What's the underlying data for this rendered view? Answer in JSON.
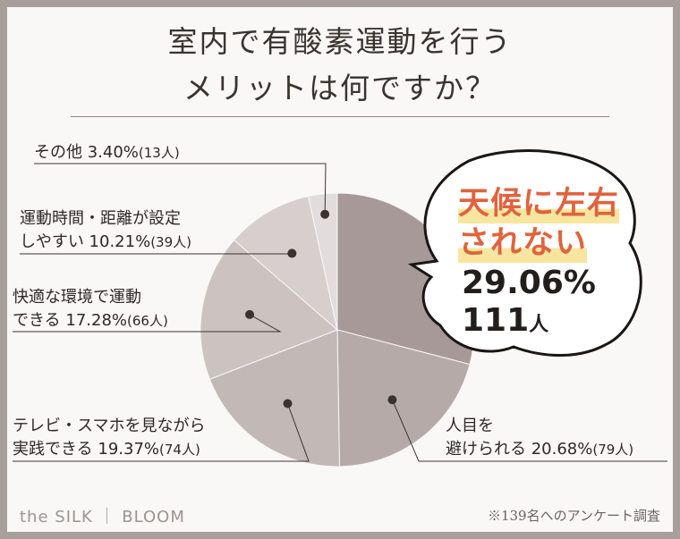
{
  "header": {
    "title_line1": "室内で有酸素運動を行う",
    "title_line2": "メリットは何ですか？"
  },
  "chart_data": {
    "type": "pie",
    "title": "室内で有酸素運動を行うメリットは何ですか？",
    "slices": [
      {
        "label_lines": [
          "天候に左右",
          "されない"
        ],
        "percent": 29.06,
        "percent_text": "29.06%",
        "count": 111,
        "count_text": "111",
        "unit": "人",
        "color": "#a79997"
      },
      {
        "label_lines": [
          "人目を",
          "避けられる 20.68%"
        ],
        "percent": 20.68,
        "count": 79,
        "count_text": "(79人)",
        "color": "#b6aaa8"
      },
      {
        "label_lines": [
          "テレビ・スマホを見ながら",
          "実践できる 19.37%"
        ],
        "percent": 19.37,
        "count": 74,
        "count_text": "(74人)",
        "color": "#c2b8b6"
      },
      {
        "label_lines": [
          "快適な環境で運動",
          "できる 17.28%"
        ],
        "percent": 17.28,
        "count": 66,
        "count_text": "(66人)",
        "color": "#ccc3c1"
      },
      {
        "label_lines": [
          "運動時間・距離が設定",
          "しやすい 10.21%"
        ],
        "percent": 10.21,
        "count": 39,
        "count_text": "(39人)",
        "color": "#d7cfcd"
      },
      {
        "label_lines": [
          "その他 3.40%"
        ],
        "percent": 3.4,
        "count": 13,
        "count_text": "(13人)",
        "color": "#e2dddc"
      }
    ]
  },
  "footer": {
    "brand": "the SILK ｜ BLOOM",
    "note": "※139名へのアンケート調査"
  }
}
